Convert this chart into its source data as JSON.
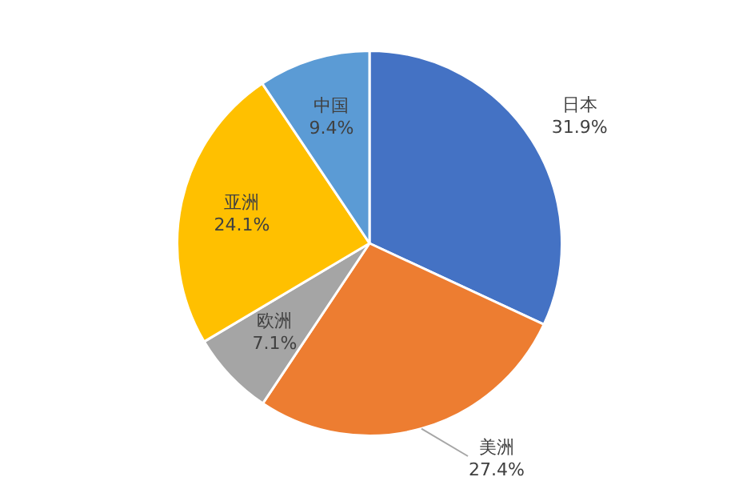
{
  "chart_data": {
    "type": "pie",
    "categories": [
      "日本",
      "美洲",
      "欧洲",
      "亚洲",
      "中国"
    ],
    "values": [
      31.9,
      27.4,
      7.1,
      24.1,
      9.4
    ],
    "value_labels": [
      "31.9%",
      "27.4%",
      "7.1%",
      "24.1%",
      "9.4%"
    ],
    "colors": [
      "#4472c4",
      "#ed7d31",
      "#a5a5a5",
      "#ffc000",
      "#5b9bd5"
    ],
    "legend": false
  }
}
